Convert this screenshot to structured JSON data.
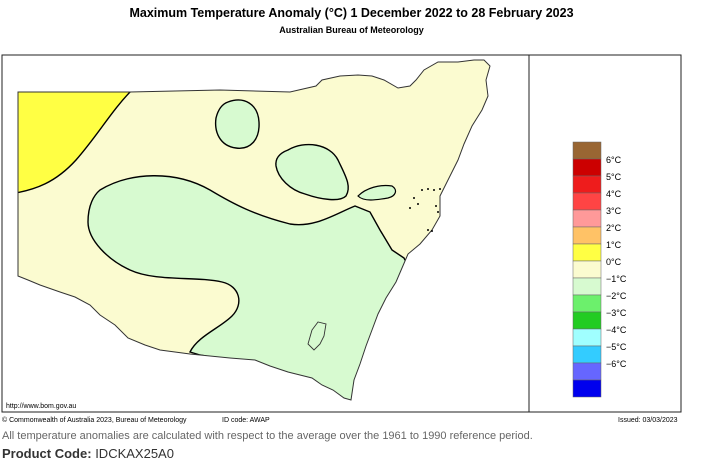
{
  "header": {
    "title": "Maximum Temperature Anomaly (°C)  1 December 2022 to 28 February 2023",
    "subtitle": "Australian Bureau of Meteorology"
  },
  "map": {
    "website": "http://www.bom.gov.au",
    "copyright": "© Commonwealth of Australia 2023, Bureau of Meteorology",
    "id_code": "ID code: AWAP",
    "issued": "Issued: 03/03/2023"
  },
  "legend": {
    "items": [
      {
        "label": "",
        "color": "#996633"
      },
      {
        "label": "6°C",
        "color": "#cc0000"
      },
      {
        "label": "5°C",
        "color": "#ee1c1c"
      },
      {
        "label": "4°C",
        "color": "#ff4444"
      },
      {
        "label": "3°C",
        "color": "#ff9999"
      },
      {
        "label": "2°C",
        "color": "#ffc266"
      },
      {
        "label": "1°C",
        "color": "#ffff44"
      },
      {
        "label": "0°C",
        "color": "#fbfbd0"
      },
      {
        "label": "−1°C",
        "color": "#d7fad0"
      },
      {
        "label": "−2°C",
        "color": "#6cf06c"
      },
      {
        "label": "−3°C",
        "color": "#22cc22"
      },
      {
        "label": "−4°C",
        "color": "#a0ffff"
      },
      {
        "label": "−5°C",
        "color": "#33ccff"
      },
      {
        "label": "−6°C",
        "color": "#6666ff"
      },
      {
        "label": "",
        "color": "#0000ee"
      }
    ]
  },
  "footer": {
    "reference_note": "All temperature anomalies are calculated with respect to the average over the 1961 to 1990 reference period.",
    "product_code_label": "Product Code:",
    "product_code_value": "IDCKAX25A0"
  }
}
